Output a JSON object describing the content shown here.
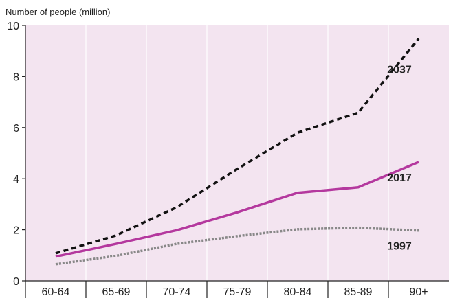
{
  "chart_data": {
    "type": "line",
    "ylabel": "Number of people (million)",
    "xlabel": "",
    "categories": [
      "60-64",
      "65-69",
      "70-74",
      "75-79",
      "80-84",
      "85-89",
      "90+"
    ],
    "ylim": [
      0,
      10
    ],
    "yticks": [
      0,
      2,
      4,
      6,
      8,
      10
    ],
    "grid": "vertical",
    "legend": "inline labels at right",
    "background_color": "#f3e4f0",
    "series": [
      {
        "name": "1997",
        "values": [
          0.65,
          0.98,
          1.45,
          1.75,
          2.02,
          2.08,
          1.97
        ],
        "color": "#888888",
        "style": "dotted"
      },
      {
        "name": "2017",
        "values": [
          0.95,
          1.45,
          1.98,
          2.68,
          3.45,
          3.66,
          4.65
        ],
        "color": "#b4389e",
        "style": "solid"
      },
      {
        "name": "2037",
        "values": [
          1.08,
          1.78,
          2.88,
          4.38,
          5.8,
          6.58,
          9.48
        ],
        "color": "#111111",
        "style": "dashed"
      }
    ]
  }
}
